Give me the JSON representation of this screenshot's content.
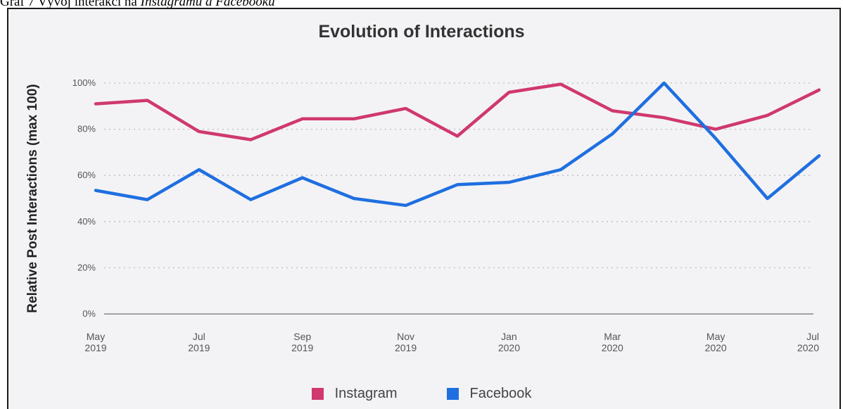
{
  "caption": {
    "prefix": "Graf 7 Vývoj interakcí na",
    "italic": "Instagramu a Facebooku"
  },
  "colors": {
    "instagram": "#d0386f",
    "facebook": "#1f6fe0",
    "grid": "#bcbcc4",
    "axis": "#888888"
  },
  "chart_data": {
    "type": "line",
    "title": "Evolution of Interactions",
    "ylabel": "Relative Post Interactions (max 100)",
    "xlabel": "",
    "ylim": [
      0,
      100
    ],
    "grid": true,
    "legend_position": "bottom",
    "x": [
      "2019-05",
      "2019-06",
      "2019-07",
      "2019-08",
      "2019-09",
      "2019-10",
      "2019-11",
      "2019-12",
      "2020-01",
      "2020-02",
      "2020-03",
      "2020-04",
      "2020-05",
      "2020-06",
      "2020-07"
    ],
    "x_ticks": [
      {
        "month": "May",
        "year": "2019",
        "index": 0
      },
      {
        "month": "Jul",
        "year": "2019",
        "index": 2
      },
      {
        "month": "Sep",
        "year": "2019",
        "index": 4
      },
      {
        "month": "Nov",
        "year": "2019",
        "index": 6
      },
      {
        "month": "Jan",
        "year": "2020",
        "index": 8
      },
      {
        "month": "Mar",
        "year": "2020",
        "index": 10
      },
      {
        "month": "May",
        "year": "2020",
        "index": 12
      },
      {
        "month": "Jul",
        "year": "2020",
        "index": 14
      }
    ],
    "y_ticks": [
      "0%",
      "20%",
      "40%",
      "60%",
      "80%",
      "100%"
    ],
    "series": [
      {
        "name": "Instagram",
        "values": [
          91,
          92.5,
          79,
          75.5,
          84.5,
          84.5,
          89,
          77,
          96,
          99.5,
          88,
          85,
          80,
          86,
          97
        ]
      },
      {
        "name": "Facebook",
        "values": [
          53.5,
          49.5,
          62.5,
          49.5,
          59,
          50,
          47,
          56,
          57,
          62.5,
          78,
          100,
          76,
          50,
          68.5
        ]
      }
    ]
  }
}
